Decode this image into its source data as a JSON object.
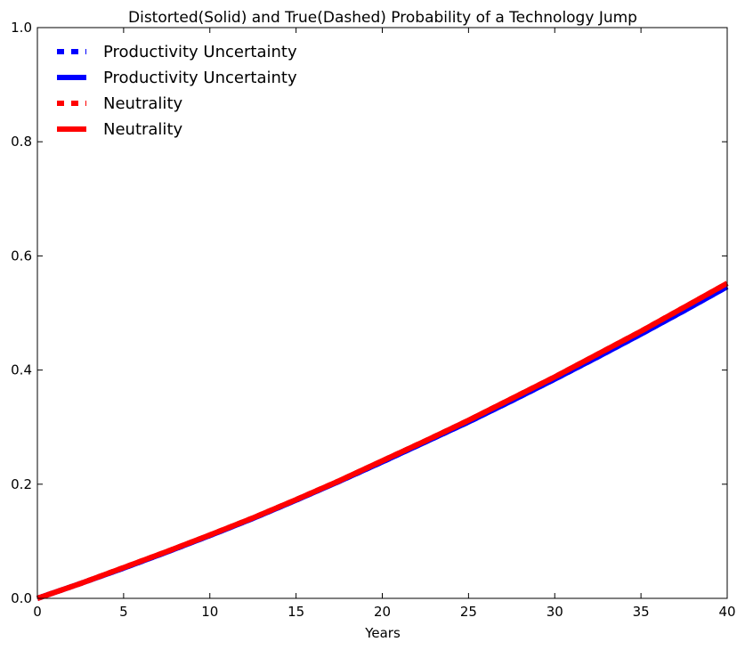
{
  "chart_data": {
    "type": "line",
    "title": "Distorted(Solid) and True(Dashed) Probability of a Technology Jump",
    "xlabel": "Years",
    "ylabel": "",
    "xlim": [
      0,
      40
    ],
    "ylim": [
      0,
      1.0
    ],
    "xticks": [
      "0",
      "5",
      "10",
      "15",
      "20",
      "25",
      "30",
      "35",
      "40"
    ],
    "yticks": [
      "0.0",
      "0.2",
      "0.4",
      "0.6",
      "0.8",
      "1.0"
    ],
    "grid": false,
    "legend_position": "top-left",
    "x": [
      0,
      2.5,
      5,
      7.5,
      10,
      12.5,
      15,
      17.5,
      20,
      22.5,
      25,
      27.5,
      30,
      32.5,
      35,
      37.5,
      40
    ],
    "series": [
      {
        "name": "Productivity Uncertainty",
        "style": "dashed",
        "color": "#0000ff",
        "values": [
          0.0,
          0.026,
          0.053,
          0.081,
          0.11,
          0.14,
          0.172,
          0.205,
          0.239,
          0.274,
          0.309,
          0.346,
          0.384,
          0.423,
          0.463,
          0.504,
          0.546
        ]
      },
      {
        "name": "Productivity Uncertainty",
        "style": "solid",
        "color": "#0000ff",
        "values": [
          0.0,
          0.026,
          0.053,
          0.081,
          0.11,
          0.14,
          0.172,
          0.205,
          0.239,
          0.274,
          0.309,
          0.346,
          0.384,
          0.423,
          0.463,
          0.504,
          0.546
        ]
      },
      {
        "name": "Neutrality",
        "style": "dashed",
        "color": "#ff0000",
        "values": [
          0.0,
          0.026,
          0.054,
          0.082,
          0.111,
          0.141,
          0.173,
          0.206,
          0.241,
          0.276,
          0.312,
          0.35,
          0.388,
          0.428,
          0.468,
          0.51,
          0.552
        ]
      },
      {
        "name": "Neutrality",
        "style": "solid",
        "color": "#ff0000",
        "values": [
          0.0,
          0.026,
          0.054,
          0.082,
          0.111,
          0.141,
          0.173,
          0.206,
          0.241,
          0.276,
          0.312,
          0.35,
          0.388,
          0.428,
          0.468,
          0.51,
          0.552
        ]
      }
    ]
  }
}
